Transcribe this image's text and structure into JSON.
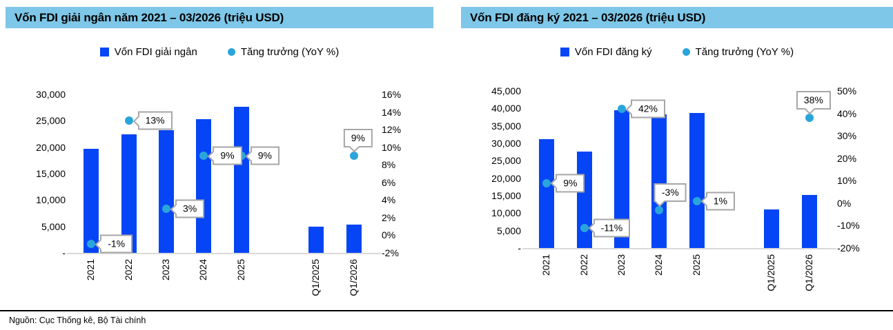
{
  "page": {
    "source_note": "Nguồn: Cục Thống kê, Bộ Tài chính"
  },
  "colors": {
    "bar": "#0645F5",
    "marker": "#2AA5DC",
    "banner_bg": "#7EC7E8",
    "axis_line": "#D9D9D9",
    "callout_border": "#A6A6A6"
  },
  "chart_data": [
    {
      "type": "bar",
      "secondary_type": "scatter",
      "title": "Vốn FDI giải ngân năm 2021 – 03/2026 (triệu USD)",
      "legend": [
        {
          "shape": "square",
          "label": "Vốn FDI giải ngân"
        },
        {
          "shape": "circle",
          "label": "Tăng trưởng (YoY %)"
        }
      ],
      "categories": [
        "2021",
        "2022",
        "2023",
        "2024",
        "2025",
        "",
        "Q1/2025",
        "Q1/2026"
      ],
      "bars": [
        19740,
        22400,
        23180,
        25350,
        27600,
        null,
        4960,
        5400
      ],
      "growth_pct": [
        -1,
        13,
        3,
        9,
        9,
        null,
        null,
        9
      ],
      "growth_labels": [
        "-1%",
        "13%",
        "3%",
        "9%",
        "9%",
        "",
        "",
        "9%"
      ],
      "label_placement": [
        "right",
        "right",
        "right",
        "right",
        "right",
        "",
        "",
        "above"
      ],
      "label_dx": [
        0,
        0,
        0,
        0,
        0,
        0,
        0,
        6
      ],
      "bar_axis": {
        "min": 0,
        "max": 30000,
        "tick_step": 5000,
        "tick_labels": [
          "30,000",
          "25,000",
          "20,000",
          "15,000",
          "10,000",
          "5,000",
          "-"
        ]
      },
      "pct_axis": {
        "min": -2,
        "max": 16,
        "tick_step": 2,
        "tick_labels": [
          "16%",
          "14%",
          "12%",
          "10%",
          "8%",
          "6%",
          "4%",
          "2%",
          "0%",
          "-2%"
        ]
      },
      "grid": "off",
      "legend_position": "top-center"
    },
    {
      "type": "bar",
      "secondary_type": "scatter",
      "title": "Vốn FDI đăng ký 2021 – 03/2026 (triệu USD)",
      "legend": [
        {
          "shape": "square",
          "label": "Vốn FDI đăng ký"
        },
        {
          "shape": "circle",
          "label": "Tăng trưởng (YoY %)"
        }
      ],
      "categories": [
        "2021",
        "2022",
        "2023",
        "2024",
        "2025",
        "",
        "Q1/2025",
        "Q1/2026"
      ],
      "bars": [
        31150,
        27720,
        39400,
        38230,
        38600,
        null,
        10980,
        15150
      ],
      "growth_pct": [
        9,
        -11,
        42,
        -3,
        1,
        null,
        null,
        38
      ],
      "growth_labels": [
        "9%",
        "-11%",
        "42%",
        "-3%",
        "1%",
        "",
        "",
        "38%"
      ],
      "label_placement": [
        "right",
        "right",
        "right",
        "above",
        "right",
        "",
        "",
        "above"
      ],
      "label_dx": [
        0,
        0,
        0,
        16,
        0,
        0,
        0,
        6
      ],
      "bar_axis": {
        "min": 0,
        "max": 45000,
        "tick_step": 5000,
        "tick_labels": [
          "45,000",
          "40,000",
          "35,000",
          "30,000",
          "25,000",
          "20,000",
          "15,000",
          "10,000",
          "5,000",
          "-"
        ]
      },
      "pct_axis": {
        "min": -20,
        "max": 50,
        "tick_step": 10,
        "tick_labels": [
          "50%",
          "40%",
          "30%",
          "20%",
          "10%",
          "0%",
          "-10%",
          "-20%"
        ]
      },
      "grid": "off",
      "legend_position": "top-center"
    }
  ]
}
